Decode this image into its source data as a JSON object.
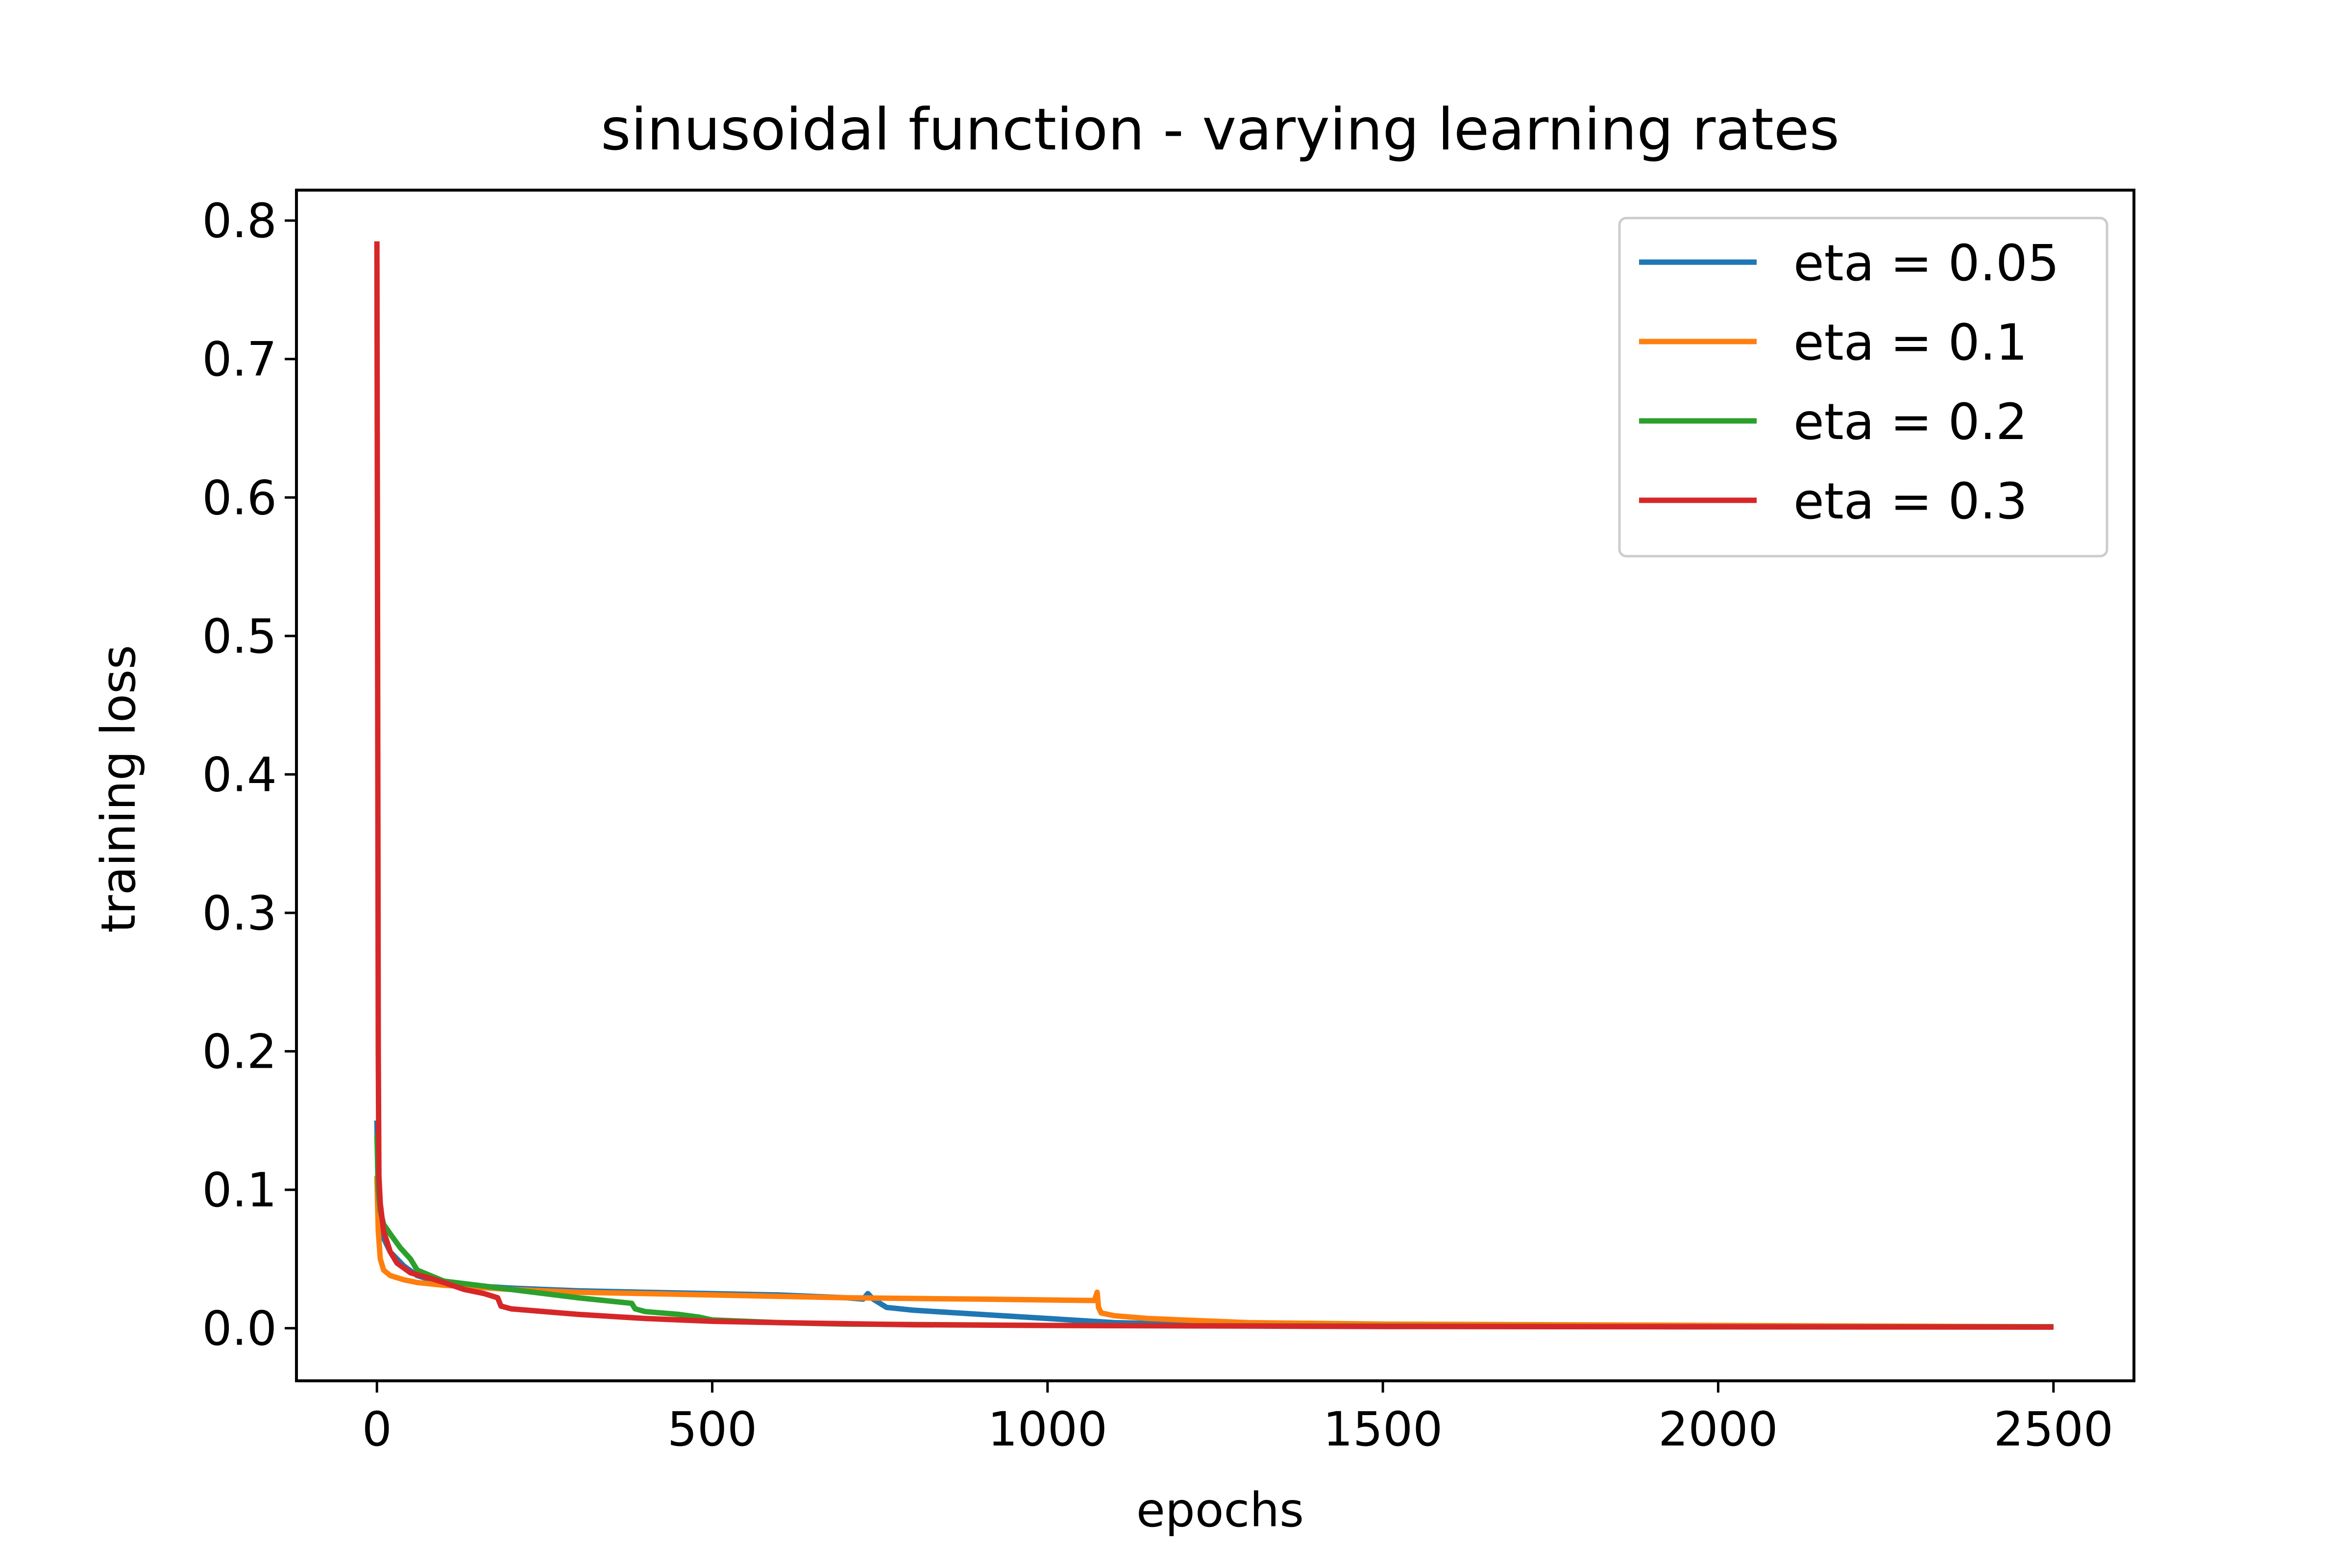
{
  "chart_data": {
    "type": "line",
    "title": "sinusoidal function - varying learning rates",
    "xlabel": "epochs",
    "ylabel": "training loss",
    "xlim": [
      -120,
      2620
    ],
    "ylim": [
      -0.038,
      0.822
    ],
    "xticks": [
      0,
      500,
      1000,
      1500,
      2000,
      2500
    ],
    "xtick_labels": [
      "0",
      "500",
      "1000",
      "1500",
      "2000",
      "2500"
    ],
    "yticks": [
      0.0,
      0.1,
      0.2,
      0.3,
      0.4,
      0.5,
      0.6,
      0.7,
      0.8
    ],
    "ytick_labels": [
      "0.0",
      "0.1",
      "0.2",
      "0.3",
      "0.4",
      "0.5",
      "0.6",
      "0.7",
      "0.8"
    ],
    "grid": false,
    "legend_position": "top-right",
    "series": [
      {
        "name": "eta = 0.05",
        "color": "#1f77b4",
        "x": [
          0,
          2,
          5,
          10,
          20,
          40,
          60,
          100,
          200,
          300,
          400,
          500,
          600,
          700,
          725,
          732,
          740,
          760,
          800,
          900,
          1000,
          1100,
          1200,
          1500,
          2000,
          2500
        ],
        "y": [
          0.15,
          0.09,
          0.075,
          0.065,
          0.055,
          0.045,
          0.038,
          0.032,
          0.029,
          0.027,
          0.026,
          0.025,
          0.024,
          0.022,
          0.021,
          0.025,
          0.021,
          0.015,
          0.013,
          0.01,
          0.007,
          0.004,
          0.003,
          0.002,
          0.0015,
          0.001
        ]
      },
      {
        "name": "eta = 0.1",
        "color": "#ff7f0e",
        "x": [
          0,
          2,
          5,
          10,
          20,
          40,
          60,
          100,
          200,
          300,
          500,
          700,
          900,
          1070,
          1074,
          1076,
          1080,
          1100,
          1150,
          1200,
          1300,
          1500,
          2000,
          2500
        ],
        "y": [
          0.11,
          0.07,
          0.05,
          0.042,
          0.038,
          0.035,
          0.033,
          0.031,
          0.028,
          0.026,
          0.024,
          0.022,
          0.021,
          0.02,
          0.026,
          0.015,
          0.011,
          0.009,
          0.007,
          0.006,
          0.004,
          0.003,
          0.002,
          0.001
        ]
      },
      {
        "name": "eta = 0.2",
        "color": "#2ca02c",
        "x": [
          0,
          2,
          5,
          10,
          20,
          35,
          50,
          60,
          80,
          100,
          150,
          200,
          300,
          380,
          385,
          400,
          450,
          480,
          500,
          550,
          600,
          700,
          1000,
          1500,
          2000,
          2500
        ],
        "y": [
          0.14,
          0.1,
          0.085,
          0.075,
          0.068,
          0.058,
          0.05,
          0.042,
          0.038,
          0.034,
          0.031,
          0.028,
          0.022,
          0.018,
          0.014,
          0.012,
          0.01,
          0.008,
          0.006,
          0.005,
          0.004,
          0.003,
          0.002,
          0.0015,
          0.001,
          0.001
        ]
      },
      {
        "name": "eta = 0.3",
        "color": "#d62728",
        "x": [
          0,
          1,
          2,
          3,
          5,
          10,
          20,
          30,
          50,
          80,
          100,
          130,
          160,
          180,
          185,
          200,
          300,
          400,
          500,
          600,
          800,
          1000,
          1500,
          2000,
          2500
        ],
        "y": [
          0.785,
          0.5,
          0.2,
          0.11,
          0.09,
          0.07,
          0.055,
          0.047,
          0.04,
          0.036,
          0.033,
          0.028,
          0.025,
          0.022,
          0.016,
          0.014,
          0.01,
          0.007,
          0.005,
          0.004,
          0.0025,
          0.002,
          0.0012,
          0.001,
          0.0008
        ]
      }
    ]
  }
}
